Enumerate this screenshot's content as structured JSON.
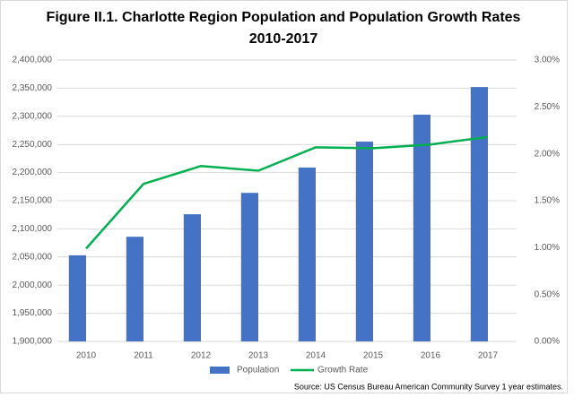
{
  "chart_data": {
    "type": "bar-line",
    "title": "Figure II.1. Charlotte Region Population and Population Growth Rates",
    "subtitle": "2010-2017",
    "source": "Source: US Census Bureau American Community Survey 1 year estimates.",
    "categories": [
      "2010",
      "2011",
      "2012",
      "2013",
      "2014",
      "2015",
      "2016",
      "2017"
    ],
    "series": [
      {
        "name": "Population",
        "type": "bar",
        "color": "#4472c4",
        "axis": "y",
        "values": [
          2053000,
          2086000,
          2126000,
          2164000,
          2209000,
          2255000,
          2303000,
          2352000
        ]
      },
      {
        "name": "Growth Rate",
        "type": "line",
        "color": "#00b050",
        "axis": "y2",
        "values": [
          0.99,
          1.68,
          1.87,
          1.82,
          2.07,
          2.06,
          2.1,
          2.18
        ]
      }
    ],
    "ylim": [
      1900000,
      2400000
    ],
    "yticks": [
      {
        "value": 1900000,
        "label": "1,900,000"
      },
      {
        "value": 1950000,
        "label": "1,950,000"
      },
      {
        "value": 2000000,
        "label": "2,000,000"
      },
      {
        "value": 2050000,
        "label": "2,050,000"
      },
      {
        "value": 2100000,
        "label": "2,100,000"
      },
      {
        "value": 2150000,
        "label": "2,150,000"
      },
      {
        "value": 2200000,
        "label": "2,200,000"
      },
      {
        "value": 2250000,
        "label": "2,250,000"
      },
      {
        "value": 2300000,
        "label": "2,300,000"
      },
      {
        "value": 2350000,
        "label": "2,350,000"
      },
      {
        "value": 2400000,
        "label": "2,400,000"
      }
    ],
    "y2lim": [
      0,
      3
    ],
    "y2ticks": [
      {
        "value": 0,
        "label": "0.00%"
      },
      {
        "value": 0.5,
        "label": "0.50%"
      },
      {
        "value": 1,
        "label": "1.00%"
      },
      {
        "value": 1.5,
        "label": "1.50%"
      },
      {
        "value": 2,
        "label": "2.00%"
      },
      {
        "value": 2.5,
        "label": "2.50%"
      },
      {
        "value": 3,
        "label": "3.00%"
      }
    ],
    "grid": true,
    "legend": "bottom"
  }
}
